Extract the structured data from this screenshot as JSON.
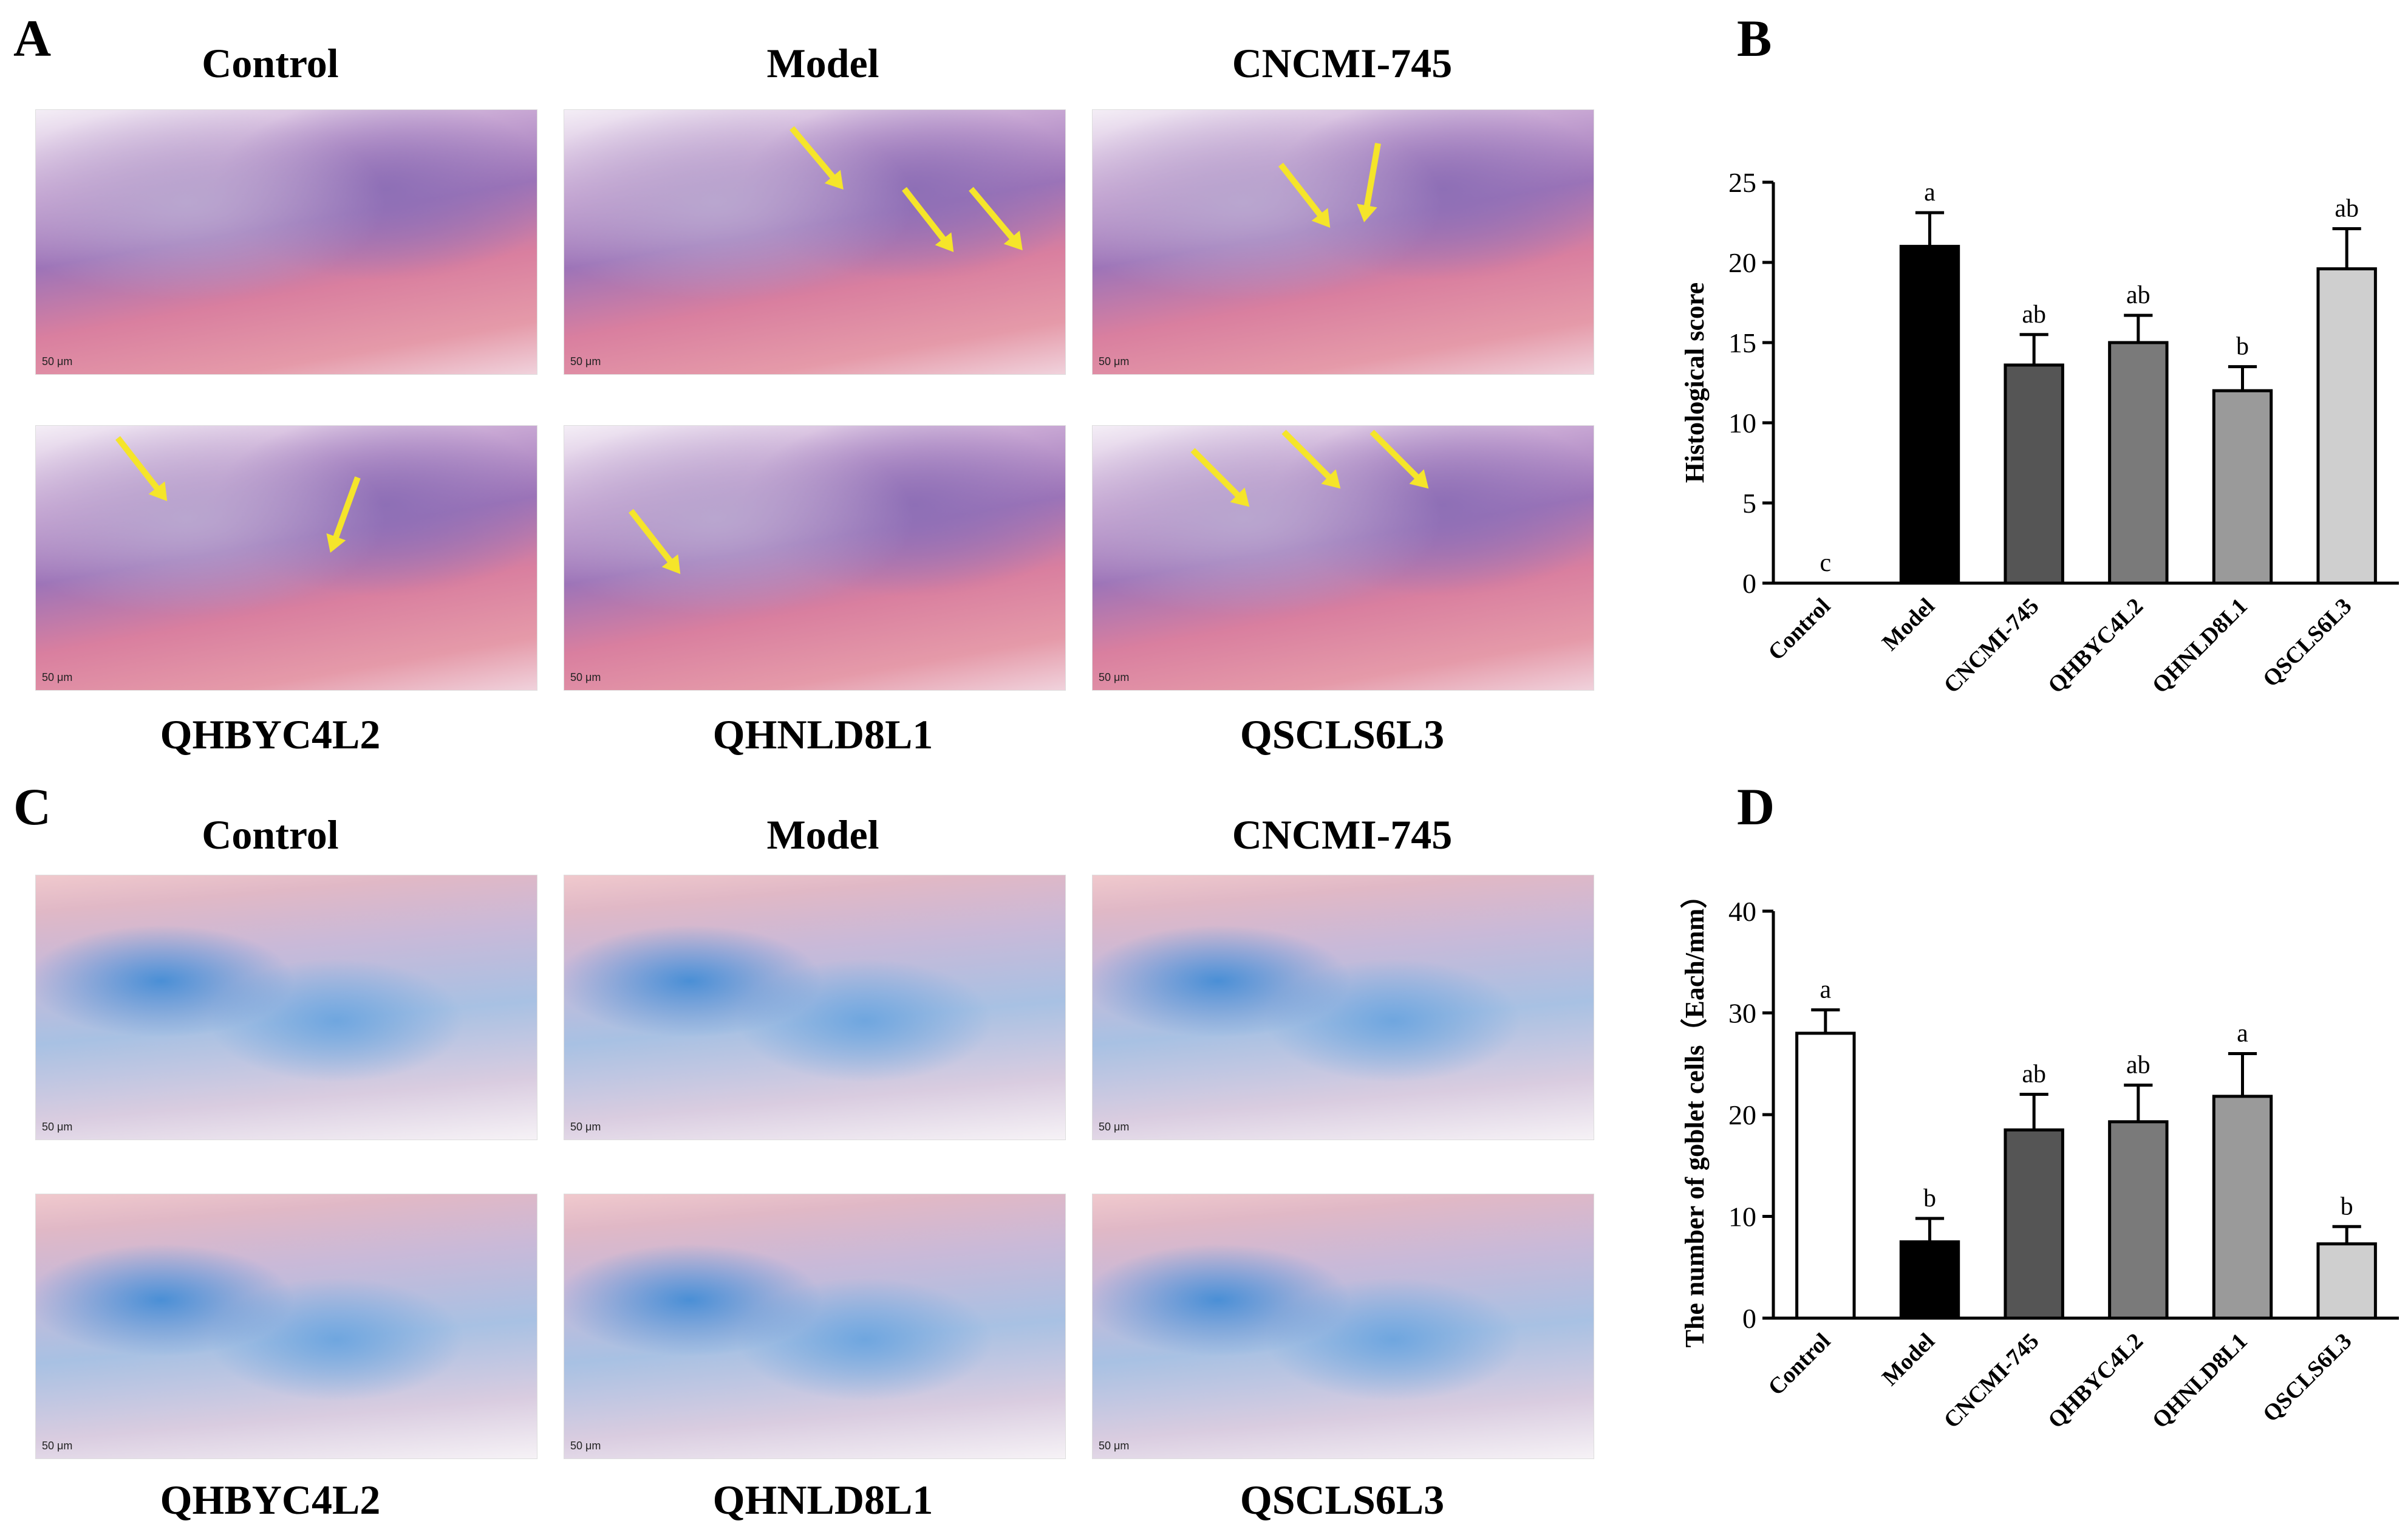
{
  "panels": {
    "A": {
      "letter": "A"
    },
    "B": {
      "letter": "B"
    },
    "C": {
      "letter": "C"
    },
    "D": {
      "letter": "D"
    }
  },
  "groups": [
    "Control",
    "Model",
    "CNCMI-745",
    "QHBYC4L2",
    "QHNLD8L1",
    "QSCLS6L3"
  ],
  "scale_bar": "50 μm",
  "chart_data": [
    {
      "type": "bar",
      "panel": "B",
      "categories": [
        "Control",
        "Model",
        "CNCMI-745",
        "QHBYC4L2",
        "QHNLD8L1",
        "QSCLS6L3"
      ],
      "values": [
        0,
        21.0,
        13.6,
        15.0,
        12.0,
        19.6
      ],
      "errors": [
        0,
        2.1,
        1.9,
        1.7,
        1.5,
        2.5
      ],
      "sig_labels": [
        "c",
        "a",
        "ab",
        "ab",
        "b",
        "ab"
      ],
      "colors": [
        "#ffffff",
        "#000000",
        "#555555",
        "#7a7a7a",
        "#9a9a9a",
        "#cfcfcf"
      ],
      "ylabel": "Histological score",
      "ylim": [
        0,
        25
      ],
      "yticks": [
        0,
        5,
        10,
        15,
        20,
        25
      ]
    },
    {
      "type": "bar",
      "panel": "D",
      "categories": [
        "Control",
        "Model",
        "CNCMI-745",
        "QHBYC4L2",
        "QHNLD8L1",
        "QSCLS6L3"
      ],
      "values": [
        28.0,
        7.5,
        18.5,
        19.3,
        21.8,
        7.3
      ],
      "errors": [
        2.3,
        2.3,
        3.5,
        3.6,
        4.2,
        1.7
      ],
      "sig_labels": [
        "a",
        "b",
        "ab",
        "ab",
        "a",
        "b"
      ],
      "colors": [
        "#ffffff",
        "#000000",
        "#555555",
        "#7a7a7a",
        "#9a9a9a",
        "#cfcfcf"
      ],
      "ylabel": "The number of goblet cells（Each/mm）",
      "ylim": [
        0,
        40
      ],
      "yticks": [
        0,
        10,
        20,
        30,
        40
      ]
    }
  ]
}
